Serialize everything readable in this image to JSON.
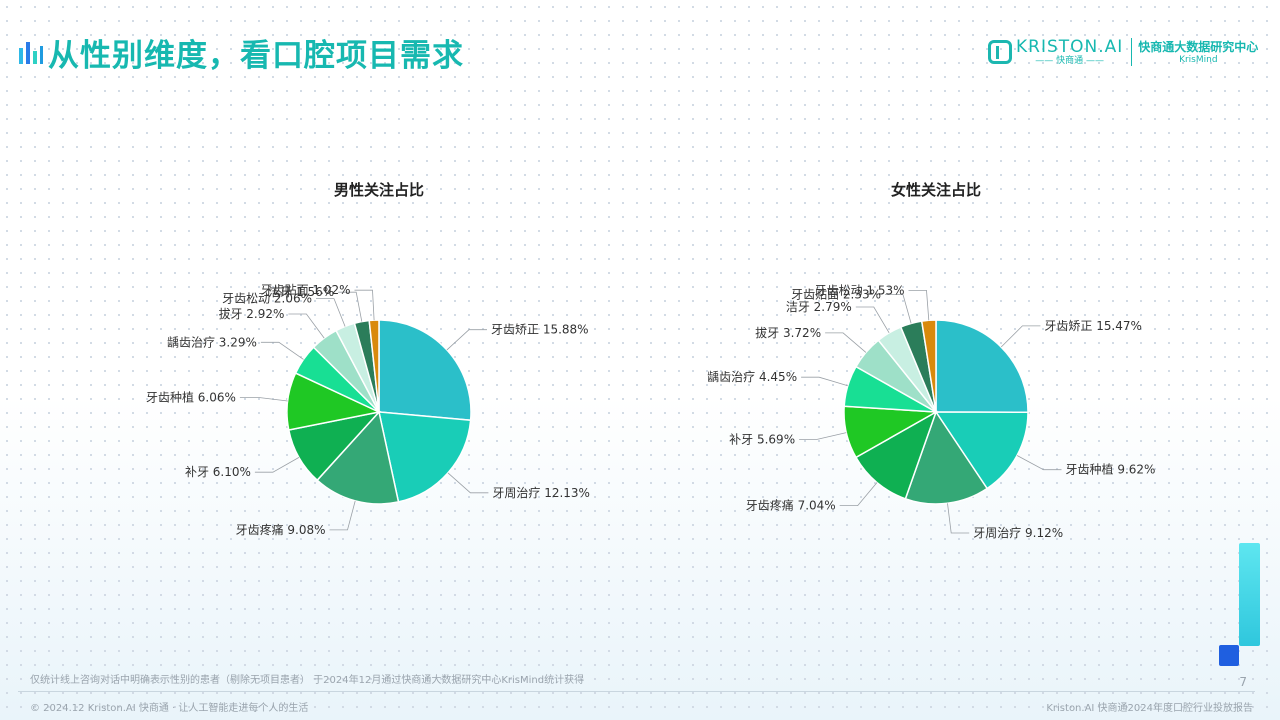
{
  "header": {
    "title": "从性别维度，看口腔项目需求"
  },
  "logo": {
    "brand": "KRISTON.AI",
    "brand_sub": "—— 快商通 ——",
    "center": "快商通大数据研究中心",
    "krismind": "KrisMind"
  },
  "chart_data": [
    {
      "type": "pie",
      "title": "男性关注占比",
      "slices": [
        {
          "label": "牙齿矫正",
          "value": 15.88,
          "display": "15.88%",
          "color": "#2bbfc9"
        },
        {
          "label": "牙周治疗",
          "value": 12.13,
          "display": "12.13%",
          "color": "#19cdb7"
        },
        {
          "label": "牙齿疼痛",
          "value": 9.08,
          "display": "9.08%",
          "color": "#34a876"
        },
        {
          "label": "补牙",
          "value": 6.1,
          "display": "6.10%",
          "color": "#0fb052"
        },
        {
          "label": "牙齿种植",
          "value": 6.06,
          "display": "6.06%",
          "color": "#1fc824"
        },
        {
          "label": "龋齿治疗",
          "value": 3.29,
          "display": "3.29%",
          "color": "#18df94"
        },
        {
          "label": "拔牙",
          "value": 2.92,
          "display": "2.92%",
          "color": "#9ee0c8"
        },
        {
          "label": "牙齿松动",
          "value": 2.06,
          "display": "2.06%",
          "color": "#c8efe2"
        },
        {
          "label": "洁牙",
          "value": 1.56,
          "display": "1.56%",
          "color": "#2b7d5a"
        },
        {
          "label": "牙齿贴面",
          "value": 1.02,
          "display": "1.02%",
          "color": "#d98a0c"
        }
      ]
    },
    {
      "type": "pie",
      "title": "女性关注占比",
      "slices": [
        {
          "label": "牙齿矫正",
          "value": 15.47,
          "display": "15.47%",
          "color": "#2bbfc9"
        },
        {
          "label": "牙齿种植",
          "value": 9.62,
          "display": "9.62%",
          "color": "#19cdb7"
        },
        {
          "label": "牙周治疗",
          "value": 9.12,
          "display": "9.12%",
          "color": "#34a876"
        },
        {
          "label": "牙齿疼痛",
          "value": 7.04,
          "display": "7.04%",
          "color": "#0fb052"
        },
        {
          "label": "补牙",
          "value": 5.69,
          "display": "5.69%",
          "color": "#1fc824"
        },
        {
          "label": "龋齿治疗",
          "value": 4.45,
          "display": "4.45%",
          "color": "#18df94"
        },
        {
          "label": "拔牙",
          "value": 3.72,
          "display": "3.72%",
          "color": "#9ee0c8"
        },
        {
          "label": "洁牙",
          "value": 2.79,
          "display": "2.79%",
          "color": "#c8efe2"
        },
        {
          "label": "牙齿贴面",
          "value": 2.33,
          "display": "2.33%",
          "color": "#2b7d5a"
        },
        {
          "label": "牙齿松动",
          "value": 1.53,
          "display": "1.53%",
          "color": "#d98a0c"
        }
      ]
    }
  ],
  "footer": {
    "note": "仅统计线上咨询对话中明确表示性别的患者（剔除无项目患者） 于2024年12月通过快商通大数据研究中心KrisMind统计获得",
    "copyright": "© 2024.12 Kriston.AI 快商通 · 让人工智能走进每个人的生活",
    "report": "Kriston.AI 快商通2024年度口腔行业投放报告",
    "page": "7"
  }
}
